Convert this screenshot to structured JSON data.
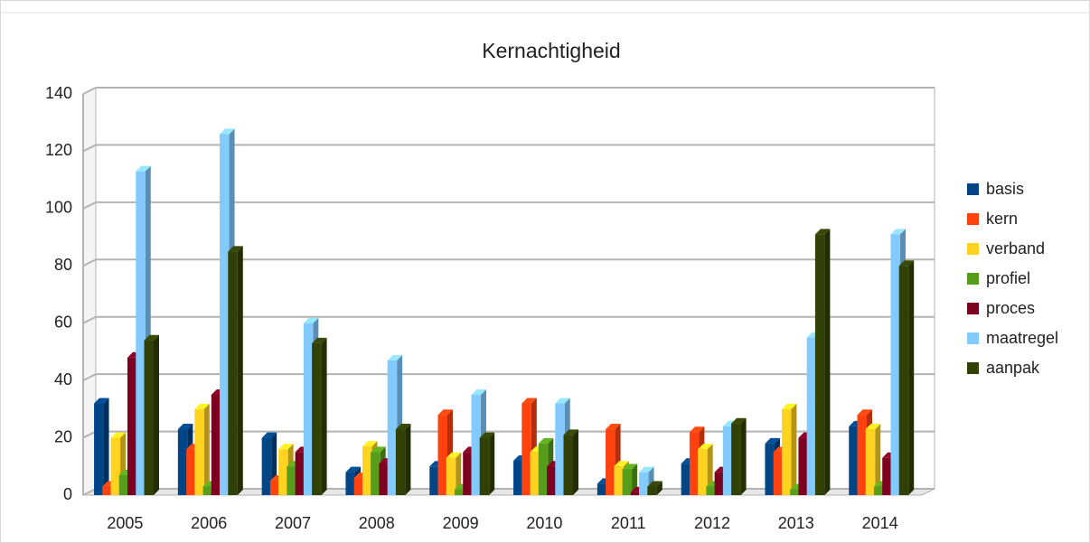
{
  "chart_data": {
    "type": "bar",
    "title": "Kernachtigheid",
    "categories": [
      "2005",
      "2006",
      "2007",
      "2008",
      "2009",
      "2010",
      "2011",
      "2012",
      "2013",
      "2014"
    ],
    "series": [
      {
        "name": "basis",
        "color": "#004586",
        "values": [
          32,
          23,
          20,
          8,
          10,
          12,
          4,
          11,
          18,
          24
        ]
      },
      {
        "name": "kern",
        "color": "#ff420e",
        "values": [
          3,
          16,
          5,
          6,
          28,
          32,
          23,
          22,
          15,
          28
        ]
      },
      {
        "name": "verband",
        "color": "#ffd320",
        "values": [
          20,
          30,
          16,
          17,
          13,
          15,
          10,
          16,
          30,
          23
        ]
      },
      {
        "name": "profiel",
        "color": "#579d1c",
        "values": [
          7,
          3,
          10,
          15,
          2,
          18,
          9,
          3,
          2,
          3
        ]
      },
      {
        "name": "proces",
        "color": "#7e0021",
        "values": [
          48,
          35,
          15,
          11,
          15,
          10,
          1,
          8,
          20,
          13
        ]
      },
      {
        "name": "maatregel",
        "color": "#83caff",
        "values": [
          113,
          126,
          60,
          47,
          35,
          32,
          8,
          24,
          55,
          91
        ]
      },
      {
        "name": "aanpak",
        "color": "#314004",
        "values": [
          54,
          85,
          53,
          23,
          20,
          21,
          3,
          25,
          91,
          80
        ]
      }
    ],
    "ylim": [
      0,
      140
    ],
    "yticks": [
      0,
      20,
      40,
      60,
      80,
      100,
      120,
      140
    ],
    "grid": true,
    "legend": "right"
  }
}
